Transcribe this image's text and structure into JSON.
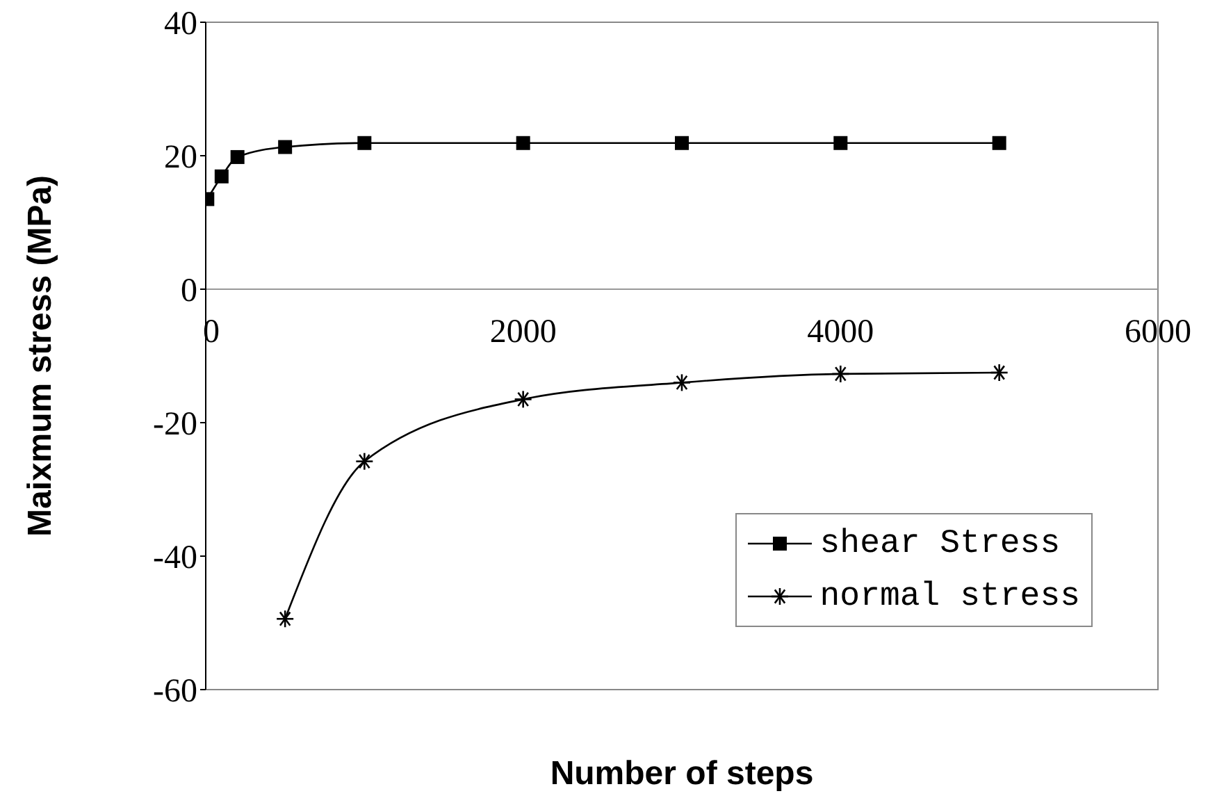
{
  "chart_data": {
    "type": "line",
    "xlabel": "Number of steps",
    "ylabel": "Maixmum stress (MPa)",
    "xlim": [
      0,
      6000
    ],
    "xticks": [
      0,
      2000,
      4000,
      6000
    ],
    "ylim": [
      -60,
      40
    ],
    "yticks": [
      -60,
      -40,
      -20,
      0,
      20,
      40
    ],
    "grid": false,
    "legend": "bottom right",
    "series": [
      {
        "name": "shear Stress",
        "color": "#000000",
        "marker": "square",
        "x": [
          10,
          100,
          200,
          500,
          1000,
          2000,
          3000,
          4000,
          5000
        ],
        "values": [
          13.5,
          16.9,
          19.8,
          21.3,
          21.9,
          21.9,
          21.9,
          21.9,
          21.9
        ]
      },
      {
        "name": "normal stress",
        "color": "#000000",
        "marker": "cross",
        "x": [
          500,
          1000,
          2000,
          3000,
          4000,
          5000
        ],
        "values": [
          -49.4,
          -25.8,
          -16.5,
          -14,
          -12.7,
          -12.5
        ]
      }
    ]
  }
}
